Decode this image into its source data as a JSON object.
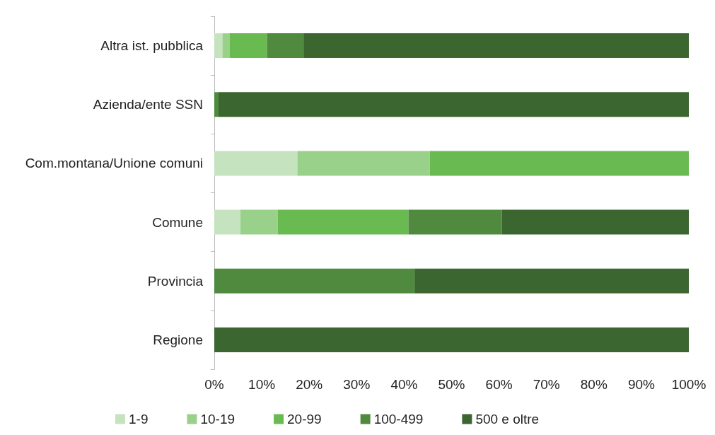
{
  "chart_data": {
    "type": "bar",
    "orientation": "horizontal",
    "stacked": true,
    "categories": [
      "Altra ist. pubblica",
      "Azienda/ente SSN",
      "Com.montana/Unione comuni",
      "Comune",
      "Provincia",
      "Regione"
    ],
    "series": [
      {
        "name": "1-9",
        "color": "#c6e3c0",
        "values": [
          1.7,
          0,
          17.5,
          5.5,
          0,
          0
        ]
      },
      {
        "name": "10-19",
        "color": "#9ad18a",
        "values": [
          1.5,
          0,
          27.9,
          7.9,
          0,
          0
        ]
      },
      {
        "name": "20-99",
        "color": "#6aba52",
        "values": [
          7.9,
          0,
          54.6,
          27.5,
          0,
          0
        ]
      },
      {
        "name": "100-499",
        "color": "#4f8a3e",
        "values": [
          7.7,
          0.9,
          0,
          19.7,
          42.2,
          0
        ]
      },
      {
        "name": "500 e oltre",
        "color": "#3c6630",
        "values": [
          81.2,
          99.1,
          0,
          39.4,
          57.8,
          100
        ]
      }
    ],
    "xlim": [
      0,
      100
    ],
    "xticks": [
      {
        "value": 0,
        "label": "0%"
      },
      {
        "value": 10,
        "label": "10%"
      },
      {
        "value": 20,
        "label": "20%"
      },
      {
        "value": 30,
        "label": "30%"
      },
      {
        "value": 40,
        "label": "40%"
      },
      {
        "value": 50,
        "label": "50%"
      },
      {
        "value": 60,
        "label": "60%"
      },
      {
        "value": 70,
        "label": "70%"
      },
      {
        "value": 80,
        "label": "80%"
      },
      {
        "value": 90,
        "label": "90%"
      },
      {
        "value": 100,
        "label": "100%"
      }
    ],
    "grid": false,
    "legend": "bottom"
  }
}
